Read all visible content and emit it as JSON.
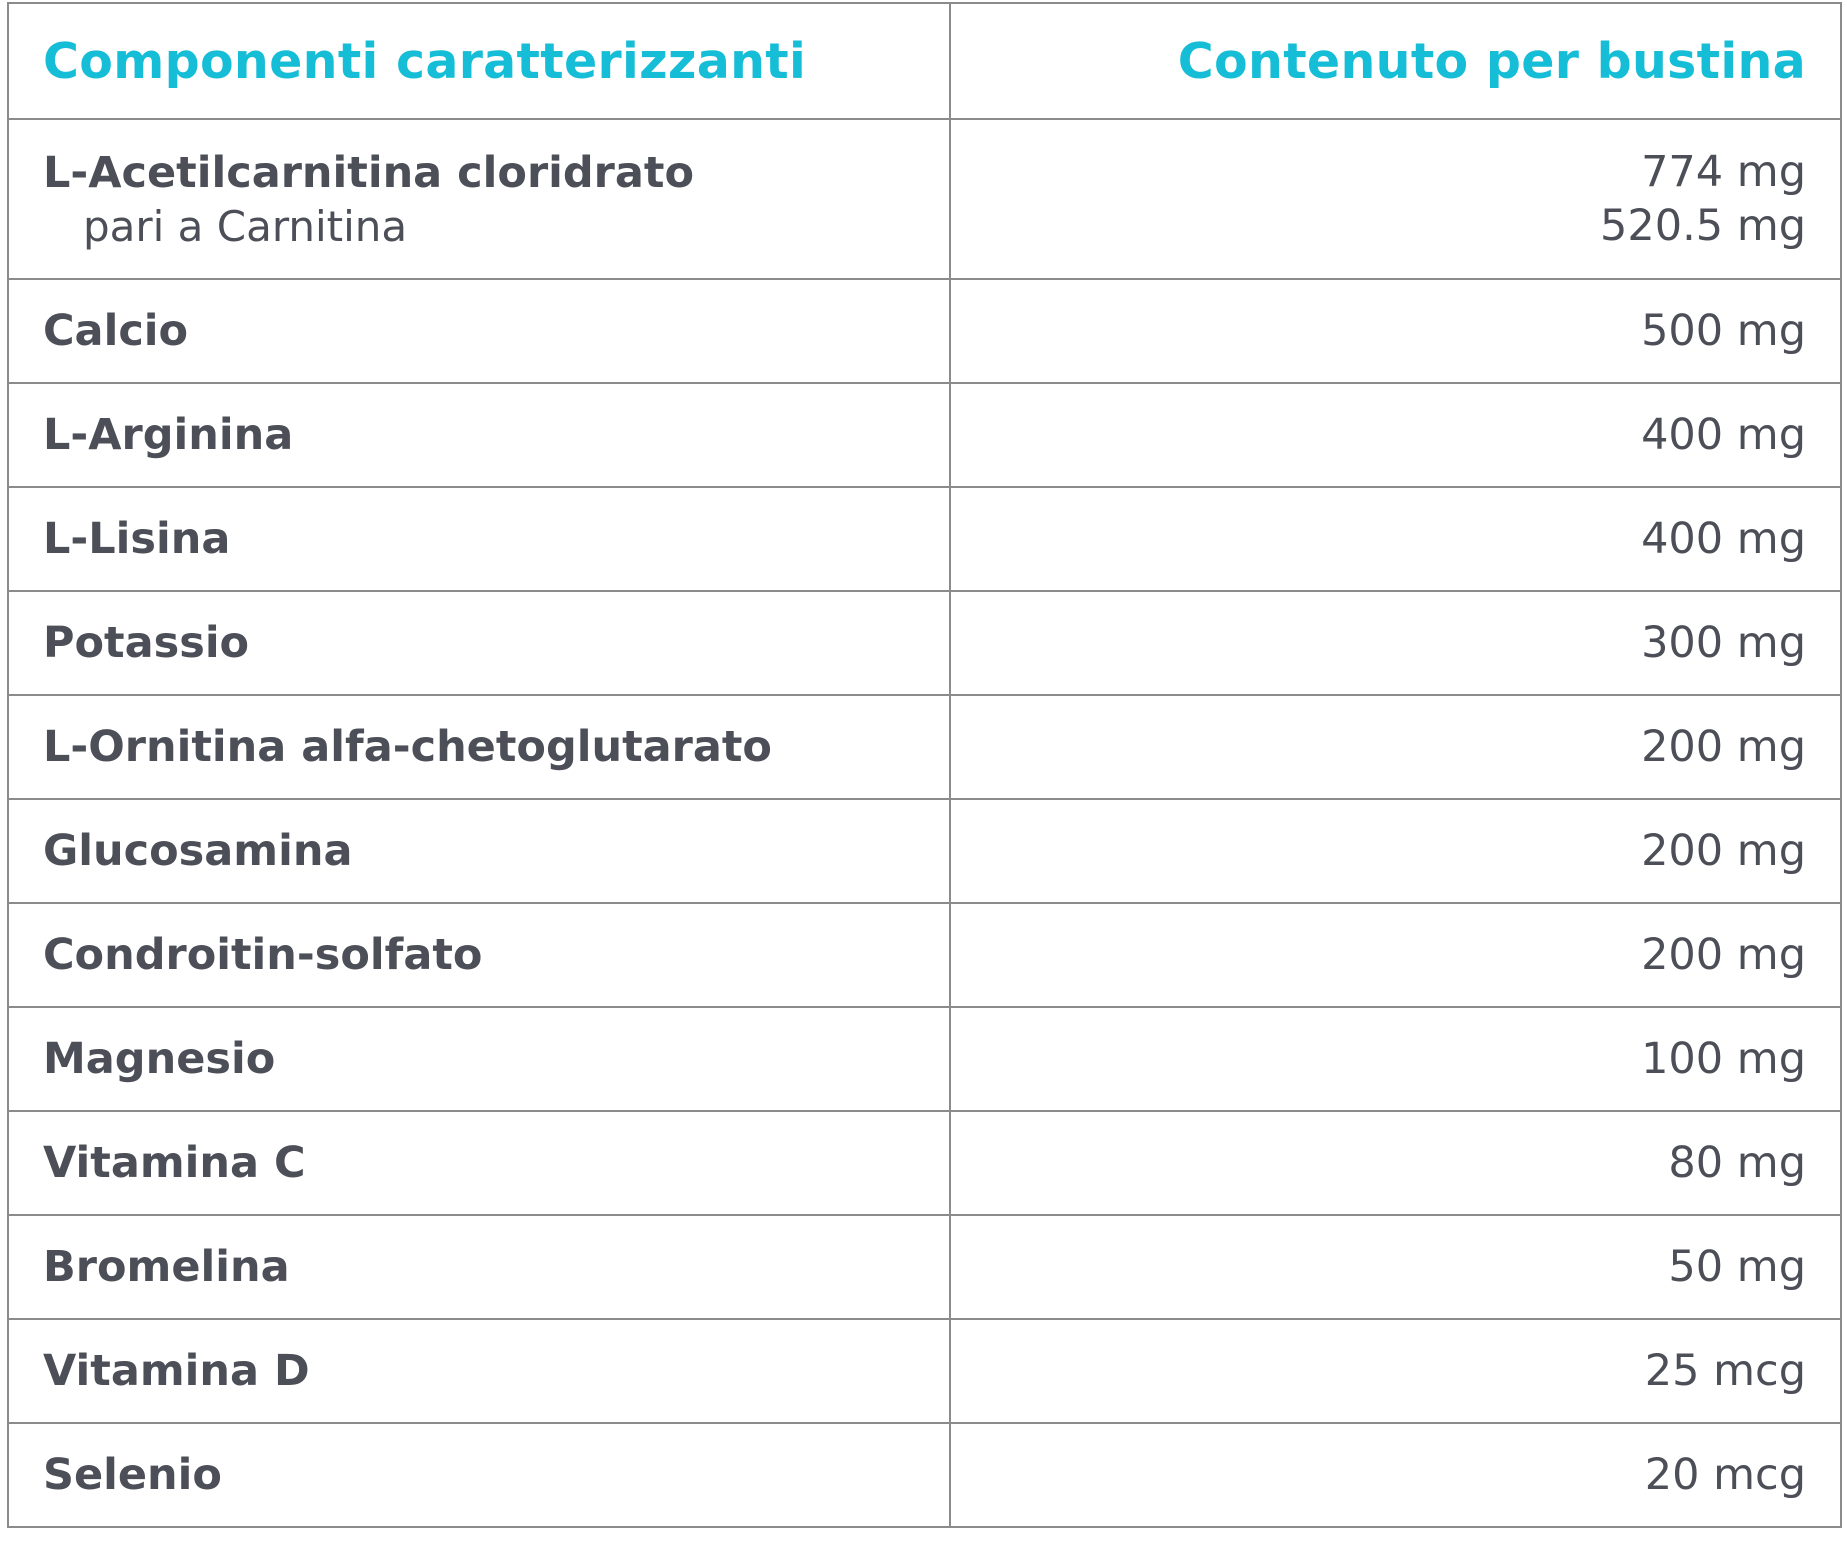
{
  "header": {
    "col1": "Componenti caratterizzanti",
    "col2": "Contenuto per bustina"
  },
  "rows": [
    {
      "name": "L-Acetilcarnitina cloridrato",
      "sub": "pari a Carnitina",
      "value": "774 mg",
      "sub_value": "520.5 mg"
    },
    {
      "name": "Calcio",
      "value": "500 mg"
    },
    {
      "name": "L-Arginina",
      "value": "400 mg"
    },
    {
      "name": "L-Lisina",
      "value": "400 mg"
    },
    {
      "name": "Potassio",
      "value": "300 mg"
    },
    {
      "name": "L-Ornitina alfa-chetoglutarato",
      "value": "200 mg"
    },
    {
      "name": "Glucosamina",
      "value": "200 mg"
    },
    {
      "name": "Condroitin-solfato",
      "value": "200 mg"
    },
    {
      "name": "Magnesio",
      "value": "100 mg"
    },
    {
      "name": "Vitamina C",
      "value": "80 mg"
    },
    {
      "name": "Bromelina",
      "value": "50 mg"
    },
    {
      "name": "Vitamina D",
      "value": "25 mcg"
    },
    {
      "name": "Selenio",
      "value": "20 mcg"
    }
  ],
  "colors": {
    "header_text": "#16bdd6",
    "body_text": "#4c4f57",
    "border": "#8a8b8d"
  }
}
